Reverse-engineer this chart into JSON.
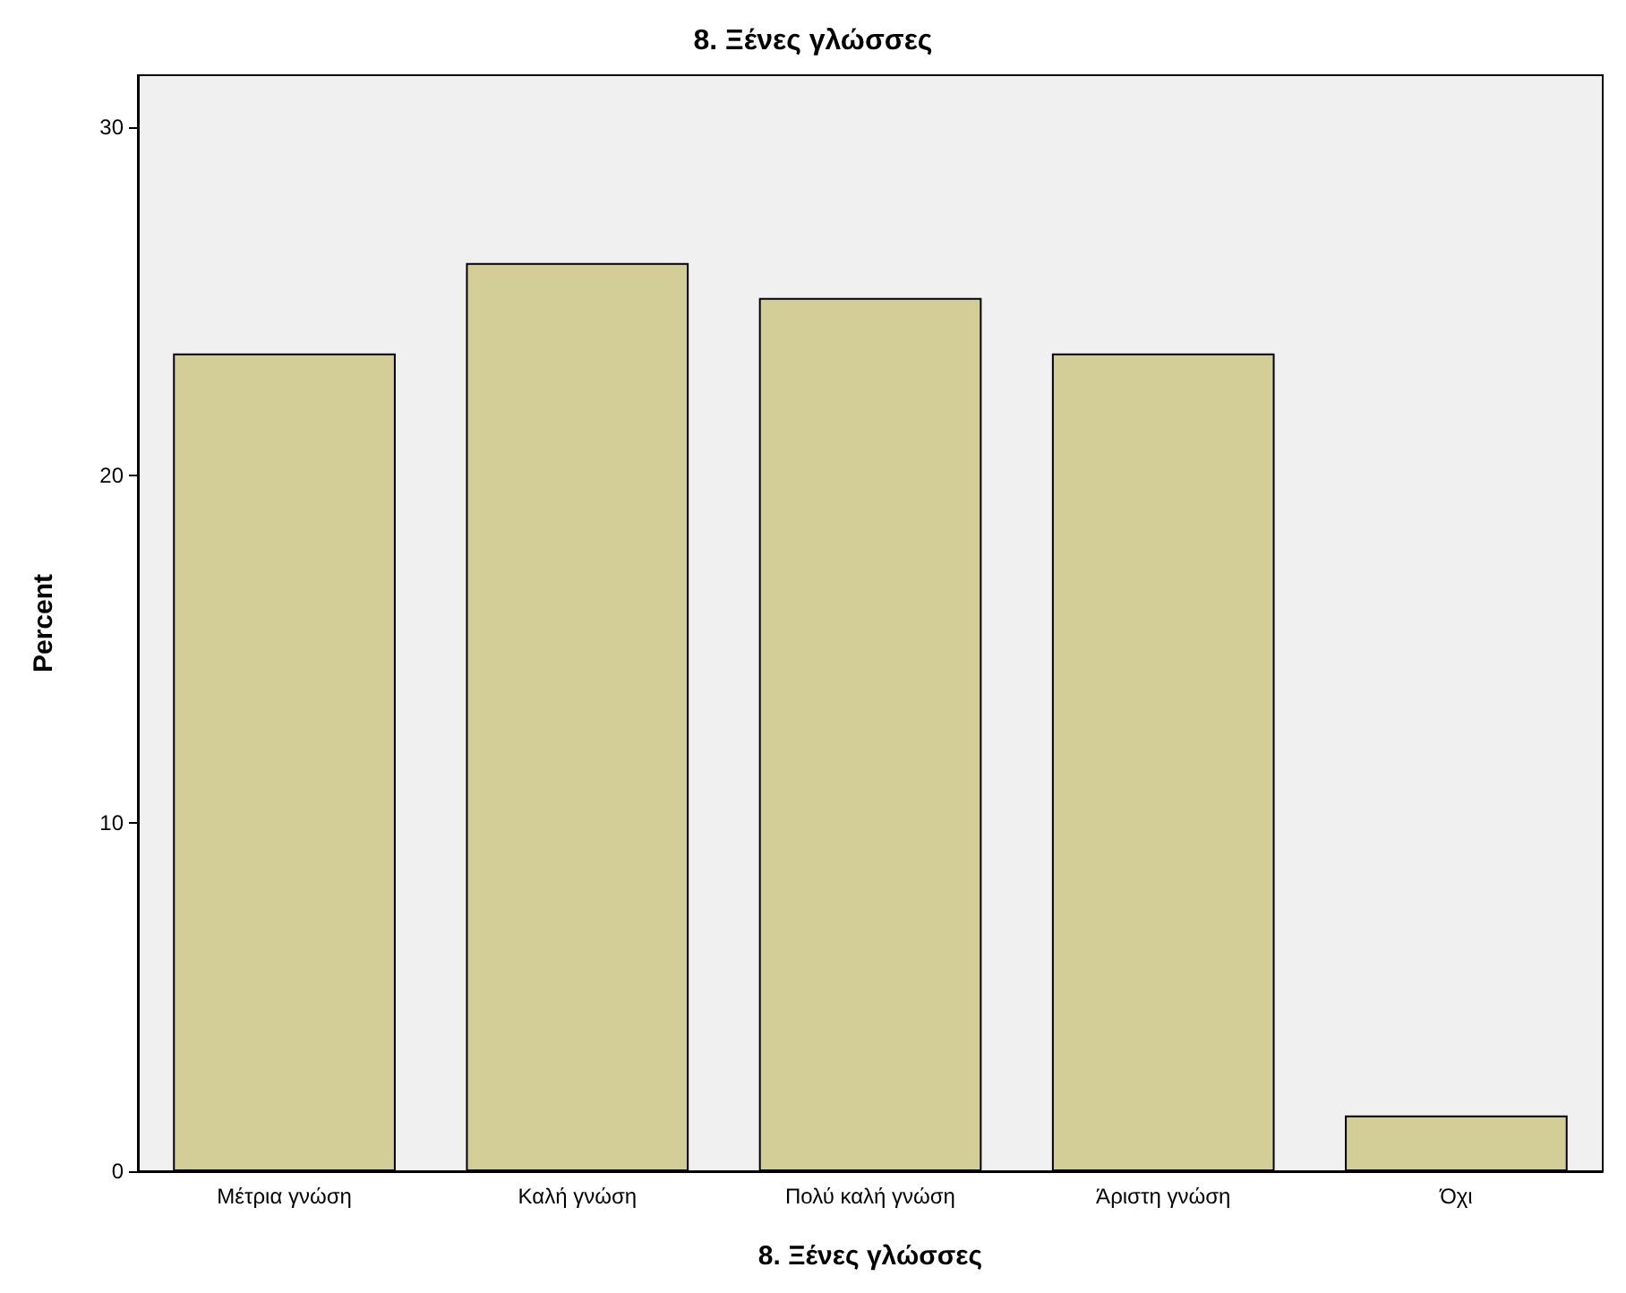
{
  "chart_data": {
    "type": "bar",
    "title": "8. Ξένες γλώσσες",
    "xlabel": "8. Ξένες γλώσσες",
    "ylabel": "Percent",
    "categories": [
      "Μέτρια γνώση",
      "Καλή γνώση",
      "Πολύ καλή γνώση",
      "Άριστη γνώση",
      "Όχι"
    ],
    "values": [
      23.5,
      26.1,
      25.1,
      23.5,
      1.6
    ],
    "color": "#d3ce97",
    "ylim": [
      0,
      31.5
    ],
    "yticks": [
      0,
      10,
      20,
      30
    ],
    "grid": false
  }
}
